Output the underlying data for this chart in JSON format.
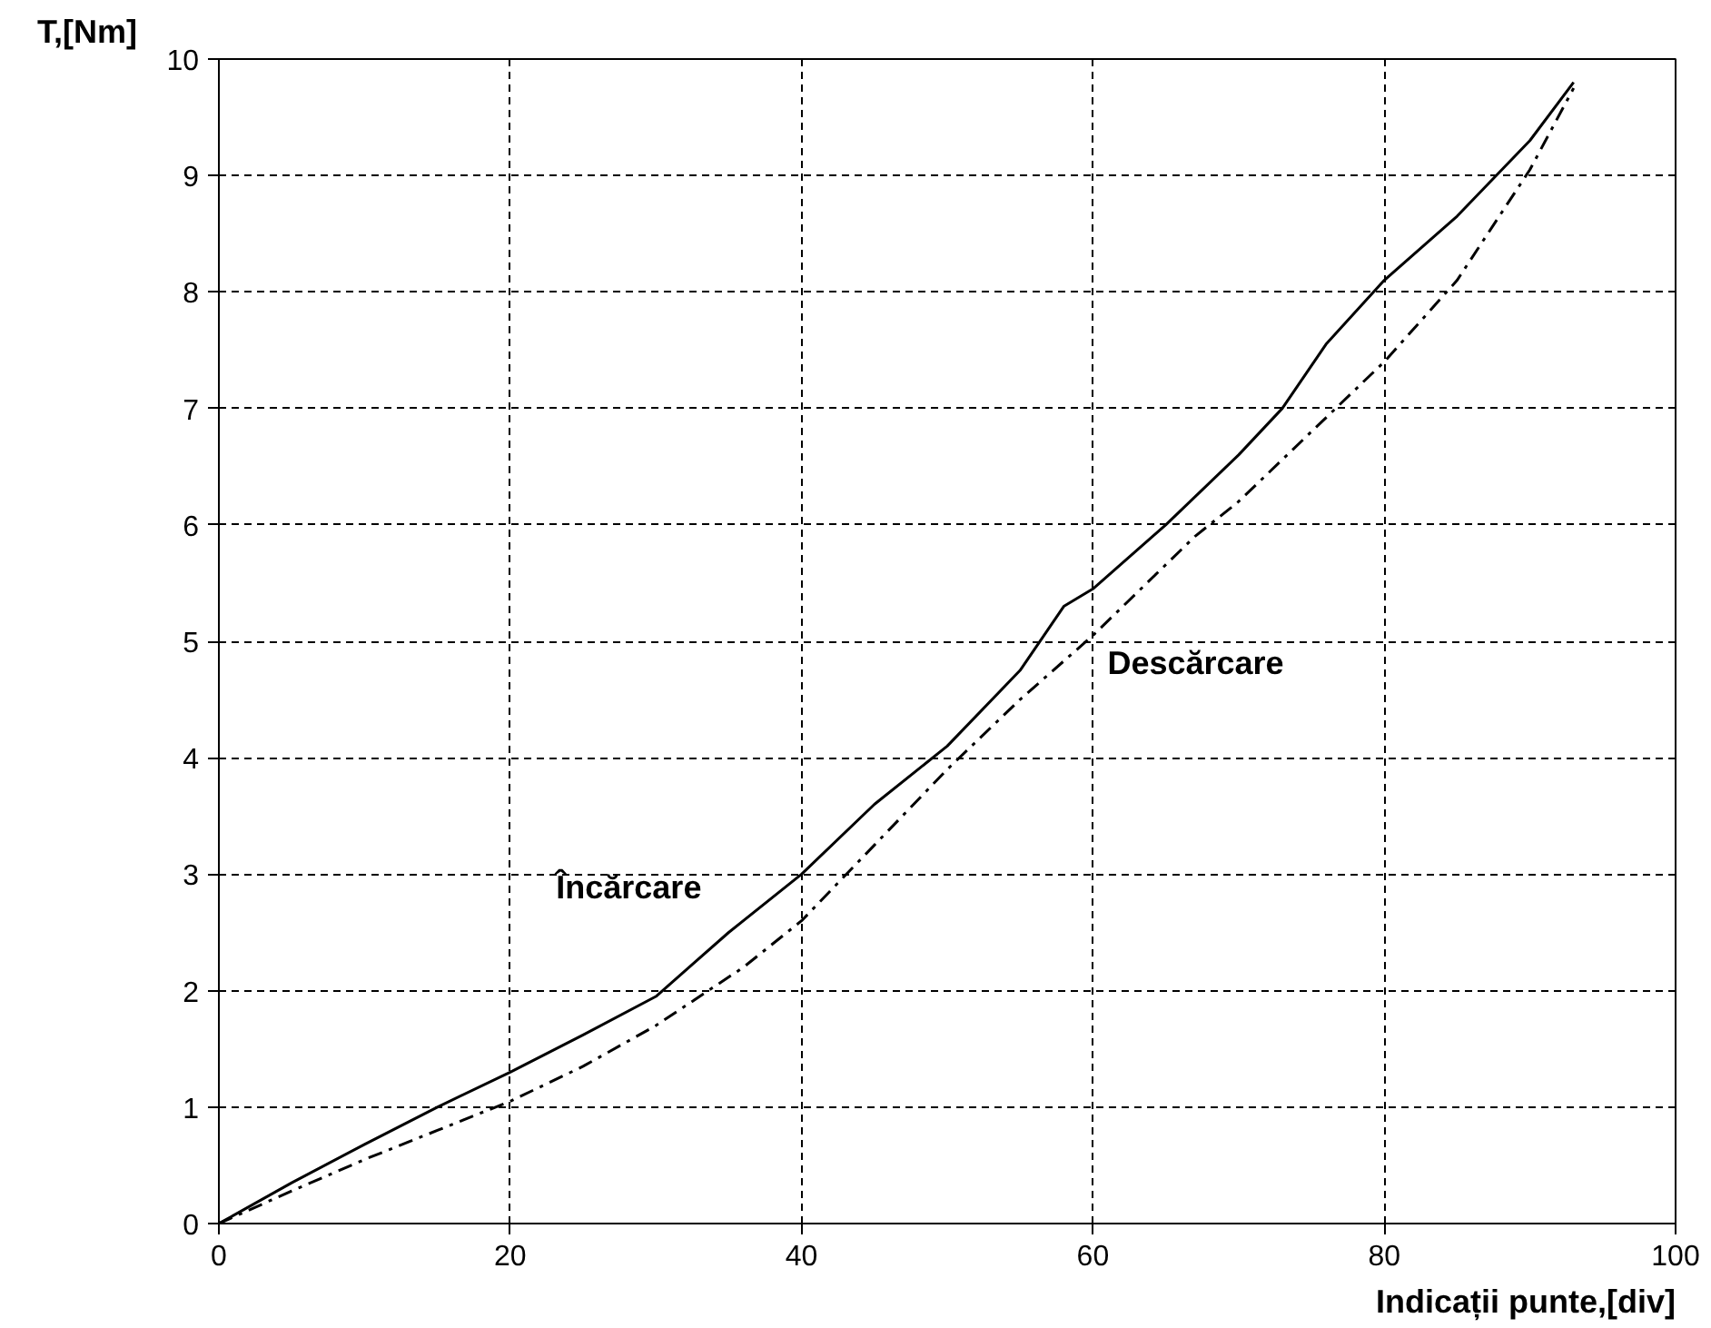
{
  "chart_data": {
    "type": "line",
    "xlabel": "Indicații punte,[div]",
    "ylabel": "T,[Nm]",
    "xlim": [
      0,
      100
    ],
    "ylim": [
      0,
      10
    ],
    "xticks": [
      0,
      20,
      40,
      60,
      80,
      100
    ],
    "yticks": [
      0,
      1,
      2,
      3,
      4,
      5,
      6,
      7,
      8,
      9,
      10
    ],
    "grid": true,
    "marker": "none",
    "series": [
      {
        "name": "Încărcare",
        "color": "#000000",
        "line_style": "solid",
        "x": [
          0,
          5,
          10,
          15,
          20,
          25,
          30,
          35,
          40,
          45,
          50,
          55,
          58,
          60,
          65,
          70,
          73,
          76,
          80,
          85,
          90,
          93
        ],
        "values": [
          0,
          0.35,
          0.68,
          1.0,
          1.3,
          1.62,
          1.95,
          2.5,
          3.0,
          3.6,
          4.1,
          4.75,
          5.3,
          5.45,
          6.0,
          6.6,
          7.0,
          7.55,
          8.1,
          8.65,
          9.3,
          9.8
        ]
      },
      {
        "name": "Descărcare",
        "color": "#000000",
        "line_style": "dashed",
        "x": [
          0,
          5,
          10,
          15,
          20,
          25,
          30,
          36,
          40,
          45,
          50,
          55,
          60,
          67,
          70,
          75,
          80,
          85,
          90,
          93
        ],
        "values": [
          0,
          0.28,
          0.55,
          0.8,
          1.05,
          1.35,
          1.7,
          2.2,
          2.6,
          3.25,
          3.9,
          4.5,
          5.05,
          5.9,
          6.2,
          6.8,
          7.4,
          8.1,
          9.05,
          9.75
        ]
      }
    ]
  }
}
